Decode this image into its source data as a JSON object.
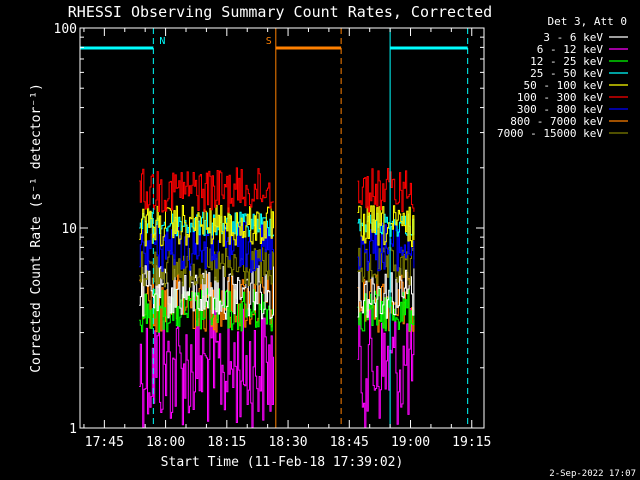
{
  "chart_data": {
    "type": "line",
    "title": "RHESSI Observing Summary Count Rates, Corrected",
    "xlabel": "Start Time (11-Feb-18 17:39:02)",
    "ylabel": "Corrected Count Rate (s⁻¹ detector⁻¹)",
    "yscale": "log",
    "ylim": [
      1,
      100
    ],
    "xlim": [
      "17:39:02",
      "19:18:00"
    ],
    "x_ticks": [
      "17:45",
      "18:00",
      "18:15",
      "18:30",
      "18:45",
      "19:00",
      "19:15"
    ],
    "y_ticks": [
      "1",
      "10",
      "100"
    ],
    "legend_title": "Det 3, Att 0",
    "legend_position": "right",
    "series": [
      {
        "name": "3 - 6 keV",
        "color": "#ffffff",
        "level_range": [
          3.5,
          6.5
        ]
      },
      {
        "name": "6 - 12 keV",
        "color": "#ff00ff",
        "level_range": [
          1.0,
          4.0
        ]
      },
      {
        "name": "12 - 25 keV",
        "color": "#00ff00",
        "level_range": [
          3.0,
          5.0
        ]
      },
      {
        "name": "25 - 50 keV",
        "color": "#00ffff",
        "level_range": [
          9.0,
          12.0
        ]
      },
      {
        "name": "50 - 100 keV",
        "color": "#ffff00",
        "level_range": [
          8.0,
          13.0
        ]
      },
      {
        "name": "100 - 300 keV",
        "color": "#ff0000",
        "level_range": [
          12.0,
          20.0
        ]
      },
      {
        "name": "300 - 800 keV",
        "color": "#0000ff",
        "level_range": [
          6.0,
          11.0
        ]
      },
      {
        "name": "800 - 7000 keV",
        "color": "#ff8000",
        "level_range": [
          3.0,
          6.0
        ]
      },
      {
        "name": "7000 - 15000 keV",
        "color": "#808000",
        "level_range": [
          5.0,
          8.0
        ]
      }
    ],
    "data_segments": [
      {
        "start": "17:53:30",
        "end": "18:26:30"
      },
      {
        "start": "18:47:00",
        "end": "19:01:00"
      }
    ],
    "night_markers": [
      {
        "label": "N",
        "start": "17:39:02",
        "end": "17:57:00",
        "color": "#00ffff"
      },
      {
        "label": "",
        "start": "18:55:00",
        "end": "19:14:00",
        "color": "#00ffff"
      }
    ],
    "saa_markers": [
      {
        "label": "S",
        "start": "18:27:00",
        "end": "18:43:00",
        "color": "#ff8000"
      }
    ],
    "footer_date": "2-Sep-2022 17:07"
  }
}
